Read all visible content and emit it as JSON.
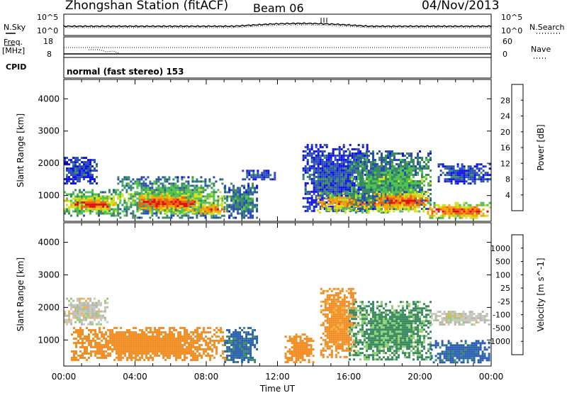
{
  "header": {
    "station": "Zhongshan Station (fitACF)",
    "beam": "Beam 06",
    "date": "04/Nov/2013"
  },
  "noise_panel": {
    "left_label": "N.Sky",
    "right_label": "N.Search",
    "left_ticks": [
      "10^5",
      "10^0"
    ],
    "right_ticks": [
      "10^5",
      "10^0"
    ]
  },
  "freq_panel": {
    "left_label_1": "Freq.",
    "left_label_2": "[MHz]",
    "right_label": "Nave",
    "left_ticks": [
      "18",
      "8"
    ],
    "right_ticks": [
      "60",
      "0"
    ]
  },
  "cpid_panel": {
    "label": "CPID",
    "program": "normal (fast stereo) 153"
  },
  "colors": {
    "power_scale": [
      "#1010e8",
      "#2a4fb4",
      "#3a8a62",
      "#4fc24f",
      "#d2e020",
      "#f5a800",
      "#f06010",
      "#e01010"
    ],
    "velocity_scale": [
      "#e01010",
      "#f06010",
      "#f08c20",
      "#f5b040",
      "#c8c8c0",
      "#b8b8b0",
      "#90d070",
      "#3a8a62",
      "#2a5fb0",
      "#1a3ab8"
    ]
  },
  "chart_data": [
    {
      "type": "heatmap",
      "title": "",
      "xlabel": "Time UT",
      "ylabel": "Slant Range [km]",
      "x_ticks": [
        "00:00",
        "04:00",
        "08:00",
        "12:00",
        "16:00",
        "20:00",
        "00:00"
      ],
      "y_ticks": [
        1000,
        2000,
        3000,
        4000
      ],
      "xlim": [
        0,
        24
      ],
      "ylim": [
        200,
        4600
      ],
      "colorbar": {
        "label": "Power [dB]",
        "ticks": [
          "4",
          "8",
          "12",
          "16",
          "20",
          "24",
          "28"
        ],
        "range": [
          0,
          30
        ]
      },
      "regions": [
        {
          "t0": 0.0,
          "t1": 3.2,
          "r0": 400,
          "r1": 1200,
          "value": 18
        },
        {
          "t0": 0.6,
          "t1": 2.6,
          "r0": 550,
          "r1": 950,
          "value": 28
        },
        {
          "t0": 0.0,
          "t1": 1.8,
          "r0": 1400,
          "r1": 2200,
          "value": 6
        },
        {
          "t0": 3.0,
          "t1": 9.0,
          "r0": 300,
          "r1": 1600,
          "value": 14
        },
        {
          "t0": 4.2,
          "t1": 7.4,
          "r0": 500,
          "r1": 1100,
          "value": 28
        },
        {
          "t0": 7.4,
          "t1": 9.0,
          "r0": 400,
          "r1": 800,
          "value": 24
        },
        {
          "t0": 9.0,
          "t1": 10.8,
          "r0": 300,
          "r1": 1400,
          "value": 10
        },
        {
          "t0": 10.0,
          "t1": 11.8,
          "r0": 1500,
          "r1": 1800,
          "value": 6
        },
        {
          "t0": 13.4,
          "t1": 17.0,
          "r0": 500,
          "r1": 2600,
          "value": 6
        },
        {
          "t0": 14.2,
          "t1": 18.2,
          "r0": 500,
          "r1": 1100,
          "value": 24
        },
        {
          "t0": 16.0,
          "t1": 20.6,
          "r0": 600,
          "r1": 2400,
          "value": 12
        },
        {
          "t0": 17.4,
          "t1": 20.4,
          "r0": 500,
          "r1": 1200,
          "value": 26
        },
        {
          "t0": 20.4,
          "t1": 23.9,
          "r0": 300,
          "r1": 800,
          "value": 26
        },
        {
          "t0": 21.0,
          "t1": 23.9,
          "r0": 1400,
          "r1": 2000,
          "value": 6
        }
      ]
    },
    {
      "type": "heatmap",
      "title": "",
      "xlabel": "Time UT",
      "ylabel": "Slant Range [km]",
      "x_ticks": [
        "00:00",
        "04:00",
        "08:00",
        "12:00",
        "16:00",
        "20:00",
        "00:00"
      ],
      "y_ticks": [
        1000,
        2000,
        3000,
        4000
      ],
      "xlim": [
        0,
        24
      ],
      "ylim": [
        200,
        4600
      ],
      "colorbar": {
        "label": "Velocity [m s^-1]",
        "ticks": [
          "1000",
          "500",
          "100",
          "25",
          "-25",
          "-100",
          "-500",
          "-1000"
        ]
      },
      "regions": [
        {
          "t0": 0.0,
          "t1": 2.4,
          "r0": 1500,
          "r1": 2300,
          "value": 0
        },
        {
          "t0": 0.4,
          "t1": 9.0,
          "r0": 400,
          "r1": 1400,
          "value": -300
        },
        {
          "t0": 9.0,
          "t1": 10.8,
          "r0": 300,
          "r1": 1400,
          "value": 600
        },
        {
          "t0": 12.4,
          "t1": 14.0,
          "r0": 300,
          "r1": 1200,
          "value": -300
        },
        {
          "t0": 14.4,
          "t1": 16.4,
          "r0": 500,
          "r1": 2600,
          "value": -150
        },
        {
          "t0": 16.0,
          "t1": 20.6,
          "r0": 400,
          "r1": 2200,
          "value": 120
        },
        {
          "t0": 20.6,
          "t1": 23.9,
          "r0": 300,
          "r1": 1000,
          "value": 700
        },
        {
          "t0": 20.6,
          "t1": 23.9,
          "r0": 1500,
          "r1": 1900,
          "value": 0
        }
      ]
    }
  ]
}
